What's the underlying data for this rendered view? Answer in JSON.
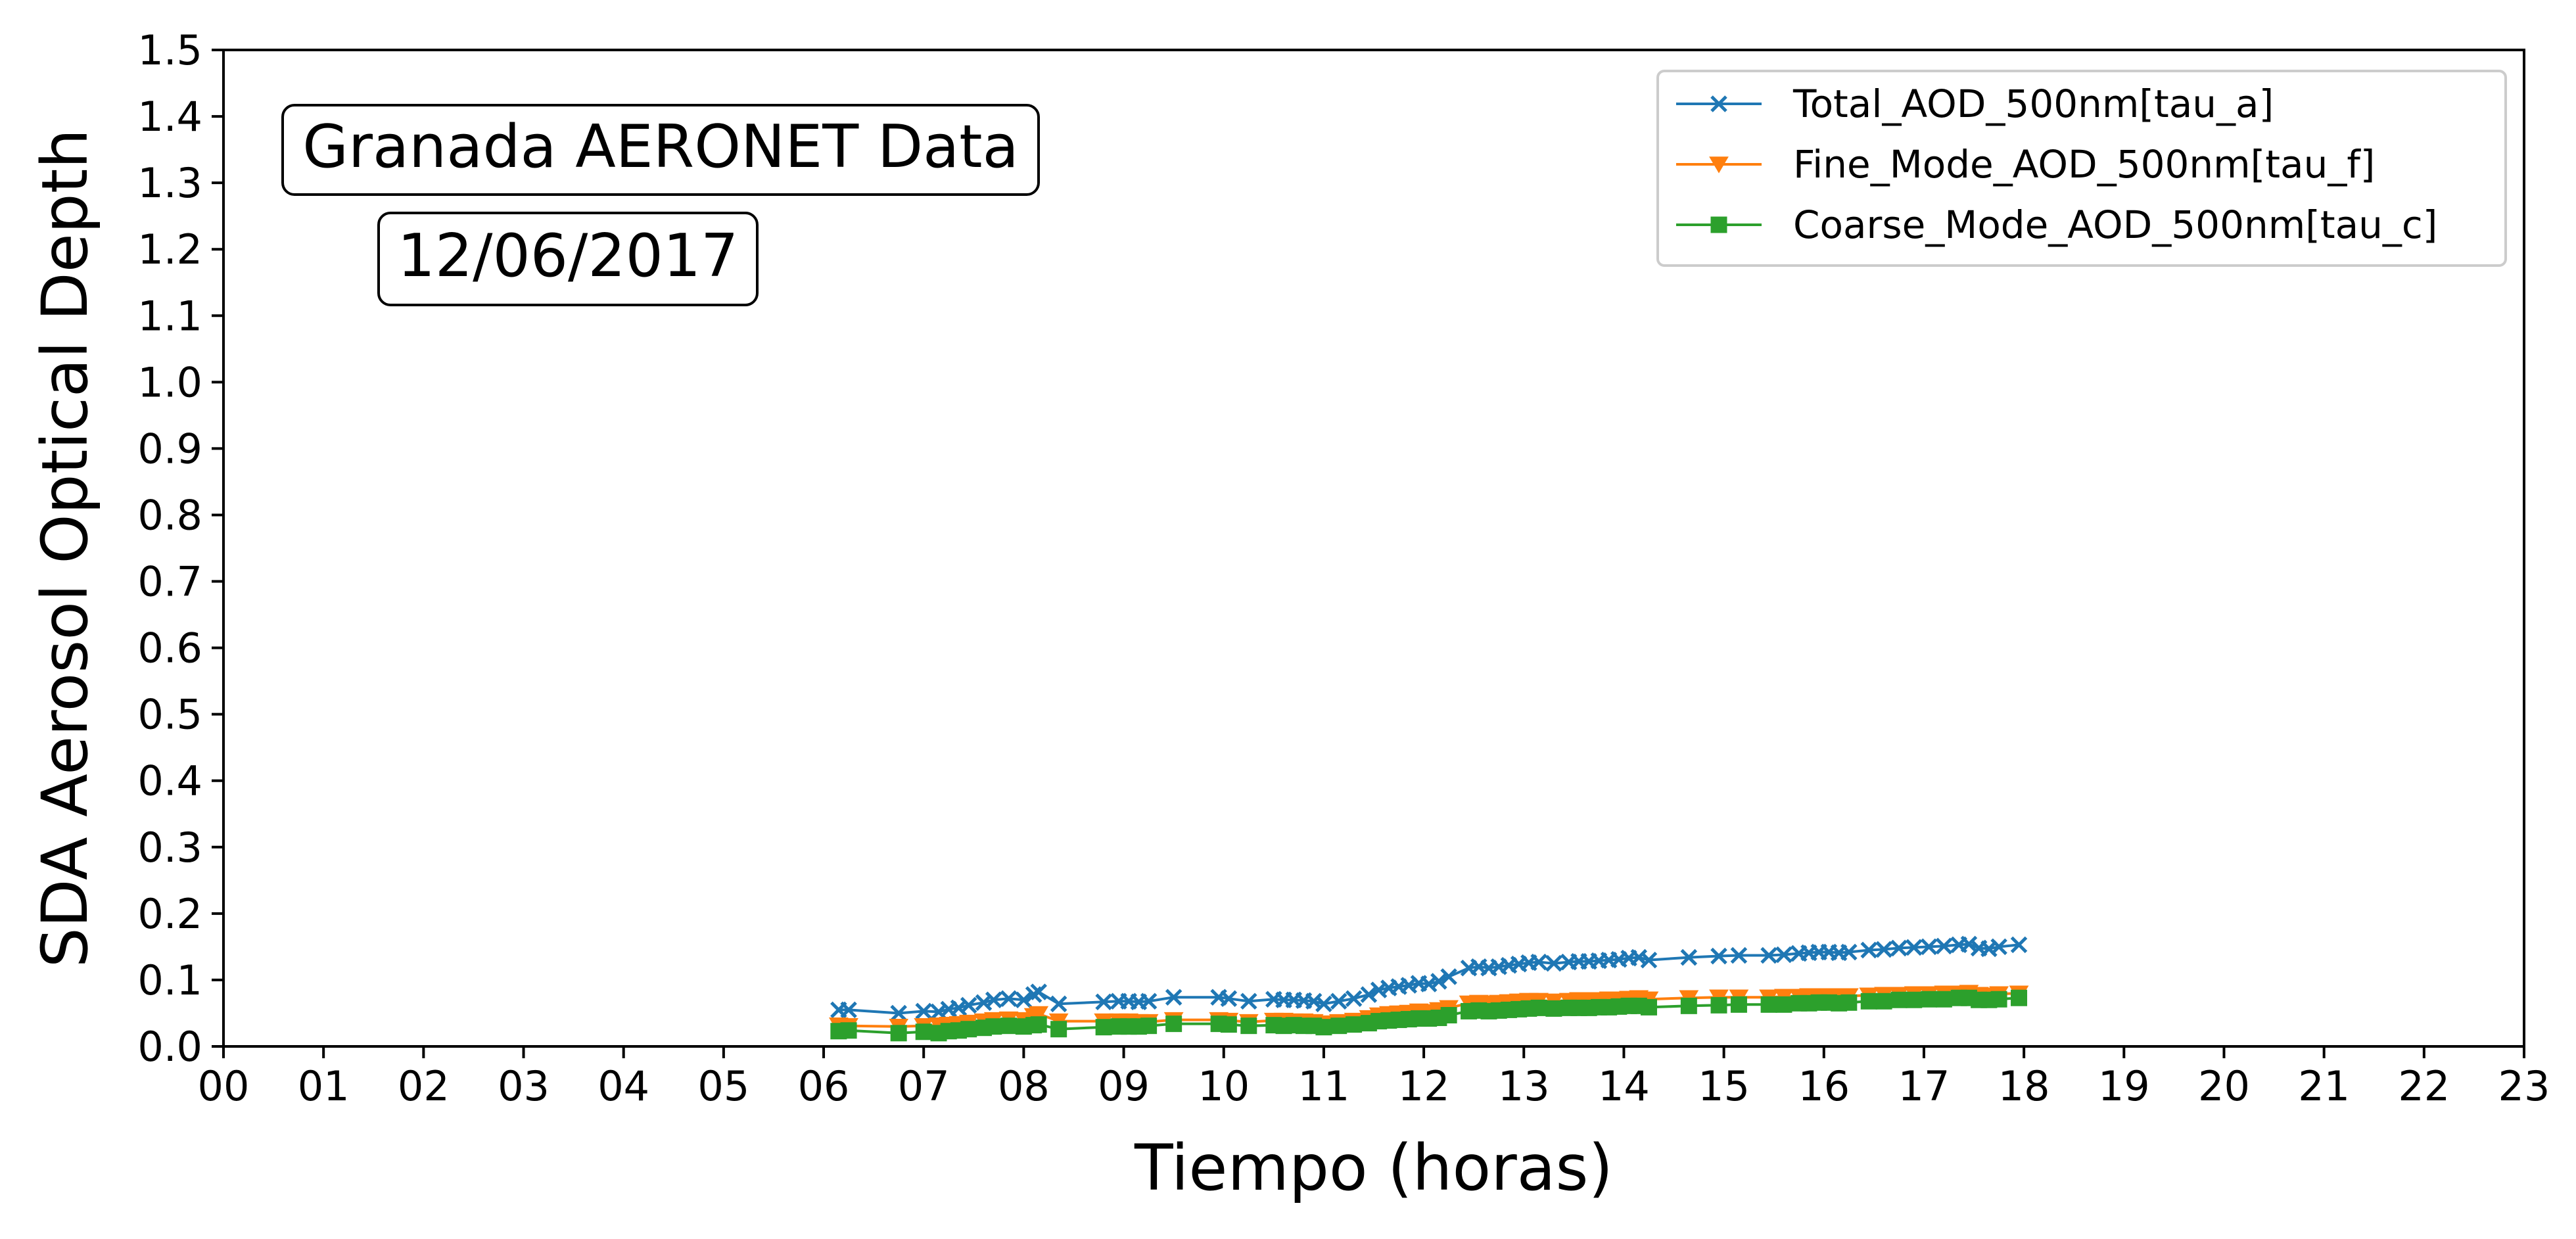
{
  "chart_data": {
    "type": "line",
    "title": "",
    "xlabel": "Tiempo (horas)",
    "ylabel": "SDA Aerosol Optical Depth",
    "xlim": [
      0,
      23
    ],
    "ylim": [
      0.0,
      1.5
    ],
    "x_tick_values": [
      0,
      1,
      2,
      3,
      4,
      5,
      6,
      7,
      8,
      9,
      10,
      11,
      12,
      13,
      14,
      15,
      16,
      17,
      18,
      19,
      20,
      21,
      22,
      23
    ],
    "x_tick_labels": [
      "00",
      "01",
      "02",
      "03",
      "04",
      "05",
      "06",
      "07",
      "08",
      "09",
      "10",
      "11",
      "12",
      "13",
      "14",
      "15",
      "16",
      "17",
      "18",
      "19",
      "20",
      "21",
      "22",
      "23"
    ],
    "y_tick_values": [
      0.0,
      0.1,
      0.2,
      0.3,
      0.4,
      0.5,
      0.6,
      0.7,
      0.8,
      0.9,
      1.0,
      1.1,
      1.2,
      1.3,
      1.4,
      1.5
    ],
    "y_tick_labels": [
      "0.0",
      "0.1",
      "0.2",
      "0.3",
      "0.4",
      "0.5",
      "0.6",
      "0.7",
      "0.8",
      "0.9",
      "1.0",
      "1.1",
      "1.2",
      "1.3",
      "1.4",
      "1.5"
    ],
    "grid": false,
    "legend_position": "top-right",
    "annotations": [
      "Granada AERONET Data",
      "12/06/2017"
    ],
    "series": [
      {
        "name": "Total_AOD_500nm[tau_a]",
        "color": "#1f77b4",
        "marker": "x",
        "x": [
          6.15,
          6.25,
          6.75,
          7.0,
          7.15,
          7.25,
          7.35,
          7.45,
          7.6,
          7.7,
          7.85,
          8.0,
          8.1,
          8.15,
          8.35,
          8.8,
          8.95,
          9.05,
          9.15,
          9.25,
          9.5,
          9.95,
          10.05,
          10.25,
          10.5,
          10.6,
          10.7,
          10.8,
          10.9,
          11.0,
          11.15,
          11.3,
          11.45,
          11.55,
          11.65,
          11.75,
          11.85,
          11.95,
          12.05,
          12.15,
          12.25,
          12.45,
          12.55,
          12.65,
          12.75,
          12.85,
          12.95,
          13.05,
          13.15,
          13.3,
          13.45,
          13.55,
          13.65,
          13.75,
          13.85,
          13.95,
          14.05,
          14.15,
          14.25,
          14.65,
          14.95,
          15.15,
          15.45,
          15.6,
          15.75,
          15.85,
          15.95,
          16.05,
          16.15,
          16.25,
          16.45,
          16.6,
          16.75,
          16.9,
          17.05,
          17.2,
          17.35,
          17.45,
          17.55,
          17.65,
          17.75,
          17.95
        ],
        "y": [
          0.055,
          0.055,
          0.05,
          0.053,
          0.052,
          0.056,
          0.058,
          0.062,
          0.066,
          0.07,
          0.072,
          0.07,
          0.078,
          0.082,
          0.064,
          0.067,
          0.068,
          0.068,
          0.067,
          0.068,
          0.074,
          0.074,
          0.072,
          0.068,
          0.071,
          0.07,
          0.07,
          0.069,
          0.068,
          0.064,
          0.068,
          0.072,
          0.078,
          0.085,
          0.088,
          0.09,
          0.092,
          0.095,
          0.094,
          0.098,
          0.105,
          0.118,
          0.12,
          0.118,
          0.12,
          0.122,
          0.124,
          0.126,
          0.127,
          0.125,
          0.127,
          0.128,
          0.128,
          0.129,
          0.13,
          0.131,
          0.133,
          0.134,
          0.13,
          0.134,
          0.136,
          0.137,
          0.137,
          0.138,
          0.14,
          0.141,
          0.142,
          0.142,
          0.141,
          0.142,
          0.145,
          0.146,
          0.148,
          0.149,
          0.15,
          0.151,
          0.153,
          0.154,
          0.148,
          0.147,
          0.15,
          0.153
        ]
      },
      {
        "name": "Fine_Mode_AOD_500nm[tau_f]",
        "color": "#ff7f0e",
        "marker": "triangle-down",
        "x": [
          6.15,
          6.25,
          6.75,
          7.0,
          7.15,
          7.25,
          7.35,
          7.45,
          7.6,
          7.7,
          7.85,
          8.0,
          8.1,
          8.15,
          8.35,
          8.8,
          8.95,
          9.05,
          9.15,
          9.25,
          9.5,
          9.95,
          10.05,
          10.25,
          10.5,
          10.6,
          10.7,
          10.8,
          10.9,
          11.0,
          11.15,
          11.3,
          11.45,
          11.55,
          11.65,
          11.75,
          11.85,
          11.95,
          12.05,
          12.15,
          12.25,
          12.45,
          12.55,
          12.65,
          12.75,
          12.85,
          12.95,
          13.05,
          13.15,
          13.3,
          13.45,
          13.55,
          13.65,
          13.75,
          13.85,
          13.95,
          14.05,
          14.15,
          14.25,
          14.65,
          14.95,
          15.15,
          15.45,
          15.6,
          15.75,
          15.85,
          15.95,
          16.05,
          16.15,
          16.25,
          16.45,
          16.6,
          16.75,
          16.9,
          17.05,
          17.2,
          17.35,
          17.45,
          17.55,
          17.65,
          17.75,
          17.95
        ],
        "y": [
          0.032,
          0.031,
          0.03,
          0.031,
          0.032,
          0.033,
          0.034,
          0.036,
          0.038,
          0.04,
          0.041,
          0.04,
          0.046,
          0.049,
          0.038,
          0.038,
          0.038,
          0.038,
          0.037,
          0.037,
          0.04,
          0.04,
          0.039,
          0.037,
          0.039,
          0.039,
          0.038,
          0.038,
          0.037,
          0.035,
          0.037,
          0.039,
          0.043,
          0.047,
          0.049,
          0.05,
          0.051,
          0.053,
          0.052,
          0.055,
          0.058,
          0.065,
          0.066,
          0.065,
          0.066,
          0.067,
          0.068,
          0.069,
          0.069,
          0.068,
          0.069,
          0.07,
          0.07,
          0.07,
          0.071,
          0.071,
          0.072,
          0.073,
          0.071,
          0.073,
          0.074,
          0.074,
          0.074,
          0.075,
          0.075,
          0.076,
          0.076,
          0.076,
          0.076,
          0.076,
          0.077,
          0.078,
          0.078,
          0.079,
          0.079,
          0.08,
          0.08,
          0.081,
          0.078,
          0.077,
          0.079,
          0.08
        ]
      },
      {
        "name": "Coarse_Mode_AOD_500nm[tau_c]",
        "color": "#2ca02c",
        "marker": "square",
        "x": [
          6.15,
          6.25,
          6.75,
          7.0,
          7.15,
          7.25,
          7.35,
          7.45,
          7.6,
          7.7,
          7.85,
          8.0,
          8.1,
          8.15,
          8.35,
          8.8,
          8.95,
          9.05,
          9.15,
          9.25,
          9.5,
          9.95,
          10.05,
          10.25,
          10.5,
          10.6,
          10.7,
          10.8,
          10.9,
          11.0,
          11.15,
          11.3,
          11.45,
          11.55,
          11.65,
          11.75,
          11.85,
          11.95,
          12.05,
          12.15,
          12.25,
          12.45,
          12.55,
          12.65,
          12.75,
          12.85,
          12.95,
          13.05,
          13.15,
          13.3,
          13.45,
          13.55,
          13.65,
          13.75,
          13.85,
          13.95,
          14.05,
          14.15,
          14.25,
          14.65,
          14.95,
          15.15,
          15.45,
          15.6,
          15.75,
          15.85,
          15.95,
          16.05,
          16.15,
          16.25,
          16.45,
          16.6,
          16.75,
          16.9,
          17.05,
          17.2,
          17.35,
          17.45,
          17.55,
          17.65,
          17.75,
          17.95
        ],
        "y": [
          0.023,
          0.024,
          0.02,
          0.022,
          0.02,
          0.023,
          0.024,
          0.026,
          0.028,
          0.03,
          0.031,
          0.03,
          0.032,
          0.033,
          0.026,
          0.029,
          0.03,
          0.03,
          0.03,
          0.031,
          0.034,
          0.034,
          0.033,
          0.031,
          0.032,
          0.031,
          0.032,
          0.031,
          0.031,
          0.029,
          0.031,
          0.033,
          0.035,
          0.038,
          0.039,
          0.04,
          0.041,
          0.042,
          0.042,
          0.043,
          0.047,
          0.053,
          0.054,
          0.053,
          0.054,
          0.055,
          0.056,
          0.057,
          0.058,
          0.057,
          0.058,
          0.058,
          0.058,
          0.059,
          0.059,
          0.06,
          0.061,
          0.061,
          0.059,
          0.061,
          0.062,
          0.063,
          0.063,
          0.063,
          0.065,
          0.065,
          0.066,
          0.066,
          0.065,
          0.066,
          0.068,
          0.068,
          0.07,
          0.07,
          0.071,
          0.071,
          0.073,
          0.073,
          0.07,
          0.07,
          0.071,
          0.073
        ]
      }
    ]
  }
}
